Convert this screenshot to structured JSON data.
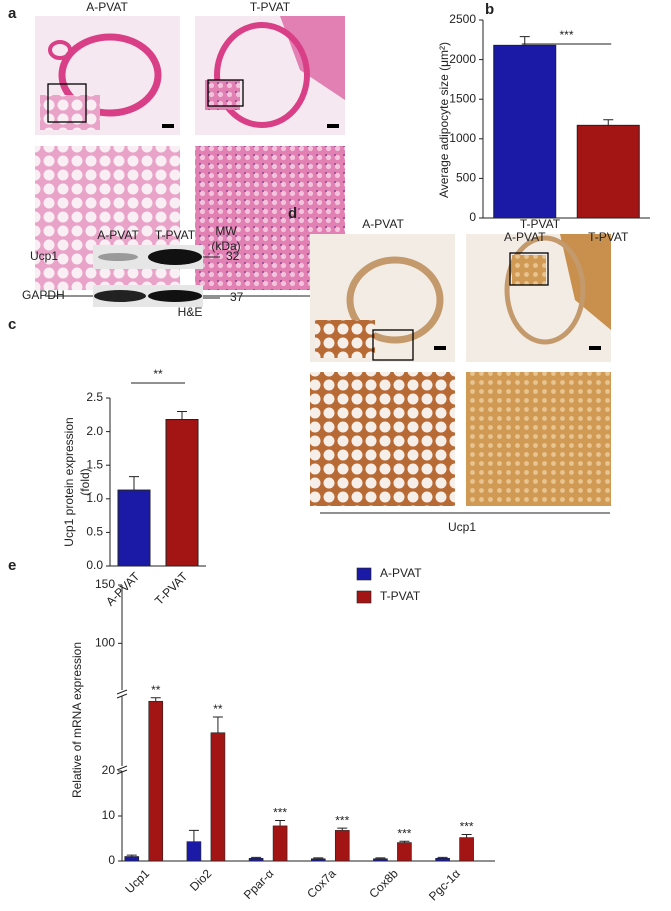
{
  "panels": {
    "a": {
      "label": "a",
      "columns": [
        "A-PVAT",
        "T-PVAT"
      ],
      "caption": "H&E"
    },
    "c": {
      "label": "c",
      "columns": [
        "A-PVAT",
        "T-PVAT"
      ],
      "mw_label": "MW",
      "mw_unit": "(kDa)",
      "rows": [
        {
          "name": "Ucp1",
          "mw": "32"
        },
        {
          "name": "GAPDH",
          "mw": "37"
        }
      ]
    },
    "d": {
      "label": "d",
      "columns": [
        "A-PVAT",
        "T-PVAT"
      ],
      "caption": "Ucp1"
    }
  },
  "chart_data": [
    {
      "type": "bar",
      "panel": "b",
      "ylabel": "Average  adipocyte size (μm²)",
      "categories": [
        "A-PVAT",
        "T-PVAT"
      ],
      "values": [
        2180,
        1170
      ],
      "errors": [
        110,
        70
      ],
      "colors": [
        "#1a1aa6",
        "#a31515"
      ],
      "ylim": [
        0,
        2500
      ],
      "yticks": [
        0,
        500,
        1000,
        1500,
        2000,
        2500
      ],
      "significance": "***"
    },
    {
      "type": "bar",
      "panel": "c",
      "ylabel": [
        "Ucp1 protein expression",
        "(fold)"
      ],
      "categories": [
        "A-PVAT",
        "T-PVAT"
      ],
      "values": [
        1.13,
        2.18
      ],
      "errors": [
        0.2,
        0.12
      ],
      "colors": [
        "#1a1aa6",
        "#a31515"
      ],
      "ylim": [
        0,
        2.5
      ],
      "yticks": [
        {
          "value": 0,
          "label": "0.0"
        },
        {
          "value": 0.5,
          "label": "0.5"
        },
        {
          "value": 1,
          "label": "1.0"
        },
        {
          "value": 1.5,
          "label": "1.5"
        },
        {
          "value": 2,
          "label": "2.0"
        },
        {
          "value": 2.5,
          "label": "2.5"
        }
      ],
      "significance": "**"
    },
    {
      "type": "grouped_bar",
      "panel": "e",
      "ylabel": "Relative of mRNA expression",
      "categories": [
        "Ucp1",
        "Dio2",
        "Ppar-α",
        "Cox7a",
        "Cox8b",
        "Pgc-1α"
      ],
      "series": [
        {
          "name": "A-PVAT",
          "color": "#1a1aa6",
          "values": [
            1,
            4.3,
            0.6,
            0.5,
            0.5,
            0.6
          ],
          "errors": [
            0.3,
            2.5,
            0.2,
            0.2,
            0.2,
            0.2
          ]
        },
        {
          "name": "T-PVAT",
          "color": "#a31515",
          "values": [
            57,
            39,
            7.8,
            6.8,
            4.1,
            5.2
          ],
          "errors": [
            2,
            9,
            1.2,
            0.5,
            0.3,
            0.7
          ],
          "significance": [
            "**",
            "**",
            "***",
            "***",
            "***",
            "***"
          ]
        }
      ],
      "ylim": [
        0,
        150
      ],
      "axis_breaks": [
        20,
        60
      ],
      "yticks": [
        0,
        10,
        20,
        100,
        150
      ],
      "legend": "top-right"
    }
  ]
}
